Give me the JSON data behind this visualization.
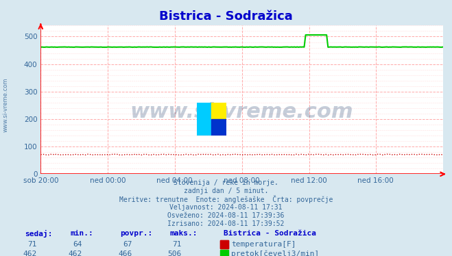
{
  "title": "Bistrica - Sodražica",
  "bg_color": "#d8e8f0",
  "plot_bg_color": "#ffffff",
  "grid_color_major": "#ffaaaa",
  "grid_color_minor": "#ffdddd",
  "title_color": "#0000cc",
  "text_color": "#336699",
  "xlabel_ticks": [
    "sob 20:00",
    "ned 00:00",
    "ned 04:00",
    "ned 08:00",
    "ned 12:00",
    "ned 16:00"
  ],
  "xlabel_tick_positions": [
    0.0,
    0.167,
    0.333,
    0.5,
    0.667,
    0.833
  ],
  "ylim": [
    0,
    540
  ],
  "yticks": [
    0,
    100,
    200,
    300,
    400,
    500
  ],
  "temp_value": 71,
  "temp_color": "#cc0000",
  "flow_base_value": 462,
  "flow_spike_value": 506,
  "flow_color": "#00cc00",
  "watermark_text": "www.si-vreme.com",
  "watermark_color": "#1a3a6a",
  "watermark_alpha": 0.25,
  "info_lines": [
    "Slovenija / reke in morje.",
    "zadnji dan / 5 minut.",
    "Meritve: trenutne  Enote: anglešaške  Črta: povprečje",
    "Veljavnost: 2024-08-11 17:31",
    "Osveženo: 2024-08-11 17:39:36",
    "Izrisano: 2024-08-11 17:39:52"
  ],
  "table_headers": [
    "sedaj:",
    "min.:",
    "povpr.:",
    "maks.:"
  ],
  "table_row1": [
    "71",
    "64",
    "67",
    "71"
  ],
  "table_row2": [
    "462",
    "462",
    "466",
    "506"
  ],
  "legend_title": "Bistrica - Sodražica",
  "legend_items": [
    {
      "label": "temperatura[F]",
      "color": "#cc0000"
    },
    {
      "label": "pretok[čevelj3/min]",
      "color": "#00cc00"
    }
  ],
  "n_points": 288
}
